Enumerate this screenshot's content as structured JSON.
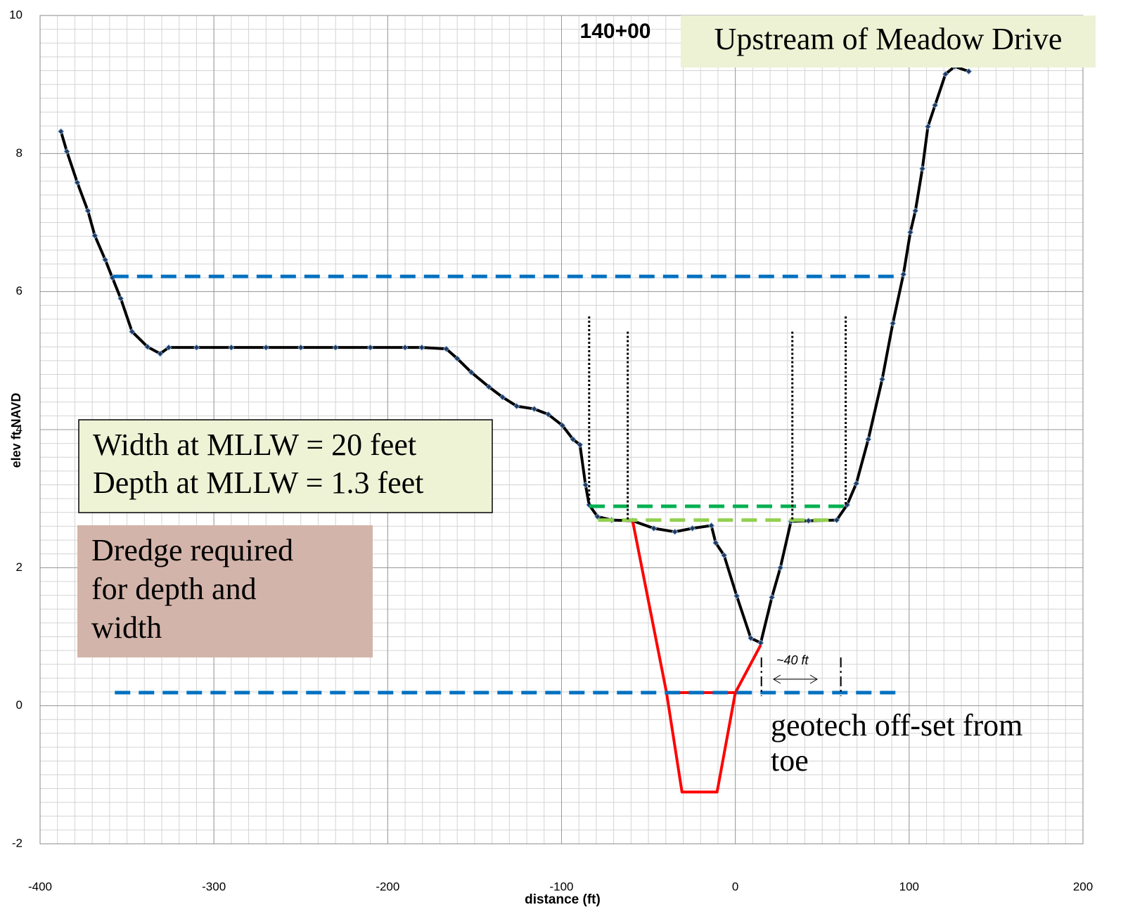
{
  "chart_data": {
    "type": "line",
    "title": "140+00",
    "subtitle": "Upstream of Meadow Drive",
    "xlabel": "distance (ft)",
    "ylabel": "elev ft NAVD",
    "xlim": [
      -400,
      200
    ],
    "ylim": [
      -2,
      10
    ],
    "xticks": [
      -400,
      -300,
      -200,
      -100,
      0,
      100,
      200
    ],
    "yticks": [
      -2,
      0,
      2,
      4,
      6,
      8,
      10
    ],
    "grid": true,
    "minor_grid": {
      "x": 10,
      "y": 0.2
    },
    "series": [
      {
        "style": "solid",
        "marker": "diamond",
        "color": "#000000",
        "x": [
          -388,
          -384.6,
          -378.6,
          -372.5,
          -368.5,
          -362.5,
          -358.4,
          -353.6,
          -347.1,
          -338.2,
          -330.9,
          -326,
          -310,
          -290,
          -270,
          -250,
          -230,
          -210,
          -190,
          -180.4,
          -166.3,
          -160,
          -151.9,
          -141.8,
          -133.9,
          -125.8,
          -115.7,
          -107.6,
          -99.5,
          -93.4,
          -89.4,
          -86.2,
          -84.1,
          -79.3,
          -71.2,
          -59.1,
          -46.9,
          -34.8,
          -24.7,
          -13.8,
          -11.3,
          -6.5,
          0.8,
          8.9,
          14.6,
          21,
          25.9,
          32,
          42.1,
          58.3,
          64.3,
          69.6,
          76.5,
          84.5,
          90.6,
          96.7,
          100.7,
          103.6,
          107.6,
          110.8,
          114.9,
          120.9,
          126.2,
          134.3
        ],
        "values": [
          8.32,
          8.03,
          7.58,
          7.17,
          6.81,
          6.46,
          6.2,
          5.9,
          5.42,
          5.2,
          5.1,
          5.19,
          5.19,
          5.19,
          5.19,
          5.19,
          5.19,
          5.19,
          5.19,
          5.19,
          5.17,
          5.03,
          4.83,
          4.62,
          4.47,
          4.34,
          4.3,
          4.22,
          4.06,
          3.86,
          3.78,
          3.2,
          2.91,
          2.74,
          2.69,
          2.68,
          2.57,
          2.52,
          2.57,
          2.61,
          2.36,
          2.18,
          1.59,
          0.98,
          0.91,
          1.57,
          2.0,
          2.67,
          2.68,
          2.69,
          2.91,
          3.22,
          3.86,
          4.73,
          5.54,
          6.25,
          6.86,
          7.17,
          7.78,
          8.39,
          8.7,
          9.15,
          9.26,
          9.19
        ]
      },
      {
        "style": "solid",
        "color": "#ff0000",
        "x": [
          -59.1,
          -39.6,
          -30.7,
          -10.5,
          0,
          14.6,
          null,
          -39.6,
          0
        ],
        "values": [
          2.68,
          0.19,
          -1.25,
          -1.25,
          0.19,
          0.88,
          null,
          0.19,
          0.19
        ]
      },
      {
        "style": "dashed",
        "color": "#0070c0",
        "x": [
          -358,
          96
        ],
        "values": [
          6.22,
          6.22
        ]
      },
      {
        "style": "dashed",
        "color": "#0070c0",
        "x": [
          -357,
          96
        ],
        "values": [
          0.19,
          0.19
        ]
      },
      {
        "style": "dashed",
        "color": "#00b050",
        "x": [
          -84,
          64
        ],
        "values": [
          2.89,
          2.89
        ]
      },
      {
        "style": "dashed",
        "color": "#92d050",
        "x": [
          -79,
          58
        ],
        "values": [
          2.69,
          2.69
        ]
      },
      {
        "style": "dotted",
        "color": "#000000",
        "x": [
          -84.1,
          -84.1
        ],
        "values": [
          5.64,
          2.91
        ]
      },
      {
        "style": "dotted",
        "color": "#000000",
        "x": [
          -61.9,
          -61.9
        ],
        "values": [
          5.42,
          2.69
        ]
      },
      {
        "style": "dotted",
        "color": "#000000",
        "x": [
          32.8,
          32.8
        ],
        "values": [
          5.42,
          2.69
        ]
      },
      {
        "style": "dotted",
        "color": "#000000",
        "x": [
          63.5,
          63.5
        ],
        "values": [
          5.64,
          2.91
        ]
      },
      {
        "style": "dashdot",
        "color": "#000000",
        "x": [
          15,
          15
        ],
        "values": [
          0.7,
          0.14
        ]
      },
      {
        "style": "dashdot",
        "color": "#000000",
        "x": [
          60.7,
          60.7
        ],
        "values": [
          0.7,
          0.14
        ]
      }
    ],
    "offset_label": "~40 ft",
    "width_box": [
      "Width at MLLW = 20 feet",
      "Depth at MLLW = 1.3 feet"
    ],
    "dredge_box": [
      "Dredge required",
      "for depth and",
      "width"
    ],
    "geotech_note": [
      "geotech off-set from",
      "toe"
    ]
  }
}
